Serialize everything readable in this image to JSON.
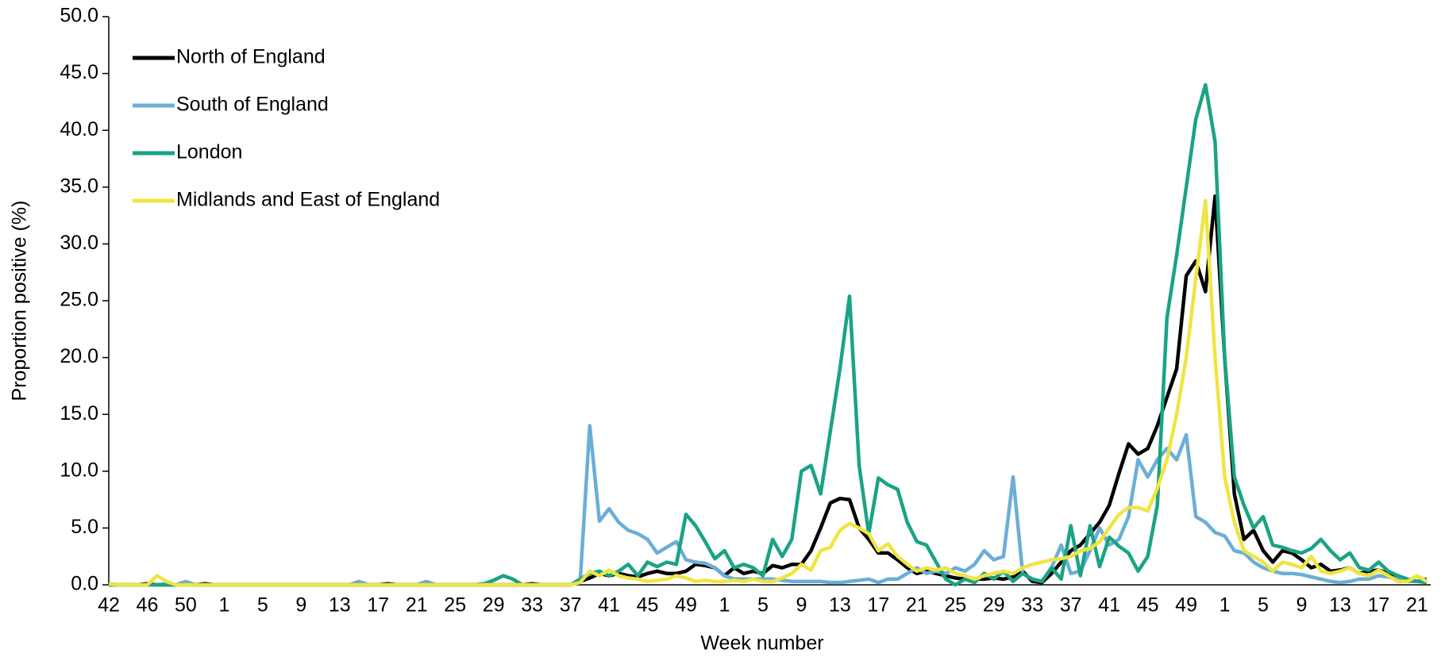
{
  "chart_data": {
    "type": "line",
    "x_label": "Week number",
    "y_label": "Proportion positive (%)",
    "categories": [
      "42",
      null,
      null,
      null,
      "46",
      null,
      null,
      null,
      "50",
      null,
      null,
      null,
      "1",
      null,
      null,
      null,
      "5",
      null,
      null,
      null,
      "9",
      null,
      null,
      null,
      "13",
      null,
      null,
      null,
      "17",
      null,
      null,
      null,
      "21",
      null,
      null,
      null,
      "25",
      null,
      null,
      null,
      "29",
      null,
      null,
      null,
      "33",
      null,
      null,
      null,
      "37",
      null,
      null,
      null,
      "41",
      null,
      null,
      null,
      "45",
      null,
      null,
      null,
      "49",
      null,
      null,
      null,
      "1",
      null,
      null,
      null,
      "5",
      null,
      null,
      null,
      "9",
      null,
      null,
      null,
      "13",
      null,
      null,
      null,
      "17",
      null,
      null,
      null,
      "21",
      null,
      null,
      null,
      "25",
      null,
      null,
      null,
      "29",
      null,
      null,
      null,
      "33",
      null,
      null,
      null,
      "37",
      null,
      null,
      null,
      "41",
      null,
      null,
      null,
      "45",
      null,
      null,
      null,
      "49",
      null,
      null,
      null,
      "1",
      null,
      null,
      null,
      "5",
      null,
      null,
      null,
      "9",
      null,
      null,
      null,
      "13",
      null,
      null,
      null,
      "17",
      null,
      null,
      null,
      "21",
      null
    ],
    "series": [
      {
        "name": "North of England",
        "color": "#000000",
        "values": [
          0.1,
          0,
          0,
          0,
          0.1,
          0,
          0,
          0,
          0.2,
          0,
          0.1,
          0,
          0,
          0,
          0,
          0,
          0,
          0,
          0,
          0,
          0,
          0,
          0,
          0,
          0,
          0,
          0,
          0,
          0,
          0.1,
          0,
          0,
          0,
          0,
          0,
          0,
          0,
          0,
          0,
          0,
          0,
          0,
          0,
          0,
          0.1,
          0,
          0,
          0,
          0,
          0.3,
          0.6,
          1.0,
          0.8,
          1.0,
          0.8,
          0.7,
          1.0,
          1.2,
          1.0,
          1.0,
          1.2,
          1.8,
          1.7,
          1.5,
          0.8,
          1.5,
          1.0,
          1.2,
          1.0,
          1.7,
          1.5,
          1.8,
          1.8,
          3.0,
          5.0,
          7.2,
          7.6,
          7.5,
          5.0,
          4.0,
          2.8,
          2.8,
          2.2,
          1.5,
          1.0,
          1.2,
          1.0,
          0.8,
          0.6,
          0.5,
          0.5,
          0.5,
          0.6,
          0.5,
          0.7,
          1.2,
          0.3,
          0.2,
          1.0,
          2.0,
          3.0,
          3.5,
          4.5,
          5.5,
          7.0,
          9.8,
          12.4,
          11.5,
          12.0,
          14.0,
          16.5,
          19.0,
          27.2,
          28.5,
          25.8,
          34.2,
          20.0,
          8.0,
          4.0,
          4.8,
          3.0,
          2.0,
          3.0,
          2.8,
          2.2,
          1.5,
          1.8,
          1.2,
          1.3,
          1.5,
          1.0,
          1.2,
          1.3,
          1.0,
          0.8,
          0.4,
          0.3,
          0.5
        ]
      },
      {
        "name": "South of England",
        "color": "#6baed6",
        "values": [
          0,
          0,
          0,
          0,
          0,
          0,
          0.1,
          0,
          0.3,
          0,
          0,
          0,
          0,
          0,
          0,
          0,
          0,
          0,
          0,
          0,
          0,
          0,
          0,
          0,
          0,
          0,
          0.3,
          0,
          0,
          0,
          0,
          0,
          0,
          0.3,
          0,
          0,
          0,
          0,
          0,
          0.1,
          0,
          0,
          0,
          0,
          0,
          0,
          0,
          0,
          0,
          0.3,
          14.0,
          5.6,
          6.7,
          5.5,
          4.8,
          4.5,
          4.0,
          2.8,
          3.3,
          3.8,
          2.2,
          2.0,
          1.9,
          1.5,
          0.8,
          0.5,
          0.5,
          0.5,
          0.5,
          0.5,
          0.4,
          0.3,
          0.3,
          0.3,
          0.3,
          0.2,
          0.2,
          0.3,
          0.4,
          0.5,
          0.2,
          0.5,
          0.5,
          1.0,
          1.5,
          1.0,
          1.2,
          1.0,
          1.5,
          1.2,
          1.8,
          3.0,
          2.2,
          2.5,
          9.5,
          1.0,
          0.5,
          0.3,
          1.5,
          3.5,
          1.0,
          1.2,
          3.0,
          5.0,
          3.5,
          4.0,
          6.0,
          11.0,
          9.5,
          11.0,
          12.0,
          11.0,
          13.2,
          6.0,
          5.5,
          4.6,
          4.3,
          3.0,
          2.8,
          2.0,
          1.5,
          1.2,
          1.0,
          1.0,
          0.9,
          0.7,
          0.5,
          0.3,
          0.2,
          0.3,
          0.5,
          0.5,
          0.8,
          0.7,
          0.5,
          0.3,
          0.3,
          0.4
        ]
      },
      {
        "name": "London",
        "color": "#1aa385",
        "values": [
          0,
          0,
          0,
          0,
          0,
          0,
          0,
          0,
          0,
          0,
          0,
          0,
          0,
          0,
          0,
          0,
          0,
          0,
          0,
          0,
          0,
          0,
          0,
          0,
          0,
          0,
          0,
          0,
          0,
          0,
          0,
          0,
          0,
          0,
          0,
          0,
          0,
          0,
          0,
          0.1,
          0.4,
          0.8,
          0.5,
          0,
          0,
          0,
          0,
          0,
          0,
          0.5,
          1.0,
          1.2,
          0.8,
          1.2,
          1.8,
          0.8,
          2.0,
          1.6,
          2.0,
          1.8,
          6.2,
          5.2,
          3.8,
          2.3,
          3.0,
          1.5,
          1.8,
          1.5,
          0.8,
          4.0,
          2.5,
          4.0,
          10.0,
          10.5,
          8.0,
          13.5,
          19.0,
          25.4,
          10.5,
          4.5,
          9.4,
          8.8,
          8.4,
          5.5,
          3.8,
          3.5,
          2.0,
          0.5,
          0.0,
          0.5,
          0.2,
          1.0,
          0.5,
          1.2,
          0.3,
          1.0,
          0.5,
          0.3,
          1.5,
          0.5,
          5.2,
          0.8,
          5.2,
          1.6,
          4.2,
          3.4,
          2.8,
          1.2,
          2.5,
          7.0,
          23.5,
          29.0,
          35.0,
          41.0,
          44.0,
          39.0,
          20.0,
          9.5,
          7.0,
          5.0,
          6.0,
          3.5,
          3.3,
          3.0,
          2.8,
          3.2,
          4.0,
          3.0,
          2.2,
          2.8,
          1.5,
          1.3,
          2.0,
          1.2,
          0.8,
          0.5,
          0.3,
          0.2
        ]
      },
      {
        "name": "Midlands and East of England",
        "color": "#f0e442",
        "values": [
          0.1,
          0,
          0,
          0,
          0,
          0.8,
          0.3,
          0,
          0,
          0,
          0,
          0,
          0,
          0,
          0,
          0,
          0,
          0,
          0,
          0,
          0,
          0,
          0,
          0,
          0,
          0,
          0,
          0,
          0,
          0,
          0,
          0,
          0,
          0,
          0,
          0,
          0,
          0,
          0,
          0,
          0,
          0,
          0,
          0,
          0,
          0,
          0,
          0,
          0,
          0.2,
          1.2,
          0.8,
          1.3,
          0.8,
          0.6,
          0.5,
          0.3,
          0.4,
          0.5,
          0.8,
          0.6,
          0.3,
          0.4,
          0.3,
          0.3,
          0.4,
          0.3,
          0.5,
          0.3,
          0.3,
          0.6,
          1.0,
          1.8,
          1.3,
          3.0,
          3.3,
          4.8,
          5.4,
          5.0,
          4.5,
          3.0,
          3.6,
          2.5,
          1.8,
          1.2,
          1.5,
          1.3,
          1.5,
          1.0,
          0.8,
          0.5,
          0.8,
          1.0,
          1.2,
          1.0,
          1.5,
          1.8,
          2.0,
          2.2,
          2.3,
          2.5,
          3.0,
          3.2,
          3.8,
          5.0,
          6.2,
          6.8,
          6.8,
          6.5,
          8.5,
          11.0,
          15.0,
          20.0,
          27.0,
          33.8,
          20.0,
          9.5,
          5.5,
          3.0,
          2.5,
          2.0,
          1.2,
          2.0,
          1.8,
          1.5,
          2.5,
          1.2,
          1.0,
          1.2,
          1.5,
          1.0,
          0.8,
          1.3,
          0.8,
          0.3,
          0.3,
          0.8,
          0.3
        ]
      }
    ],
    "ylim": [
      0,
      50
    ],
    "yticks": [
      {
        "value": 0,
        "label": "0.0"
      },
      {
        "value": 5,
        "label": "5.0"
      },
      {
        "value": 10,
        "label": "10.0"
      },
      {
        "value": 15,
        "label": "15.0"
      },
      {
        "value": 20,
        "label": "20.0"
      },
      {
        "value": 25,
        "label": "25.0"
      },
      {
        "value": 30,
        "label": "30.0"
      },
      {
        "value": 35,
        "label": "35.0"
      },
      {
        "value": 40,
        "label": "40.0"
      },
      {
        "value": 45,
        "label": "45.0"
      },
      {
        "value": 50,
        "label": "50.0"
      }
    ],
    "grid": false,
    "legend": "upper-left"
  }
}
